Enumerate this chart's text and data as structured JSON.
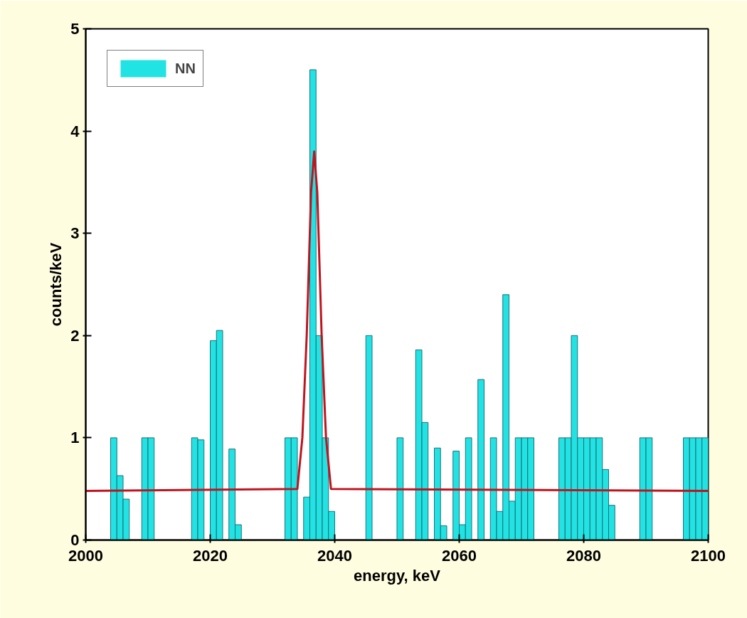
{
  "chart_data": {
    "type": "histogram",
    "xlabel": "energy, keV",
    "ylabel": "counts/keV",
    "bins": [
      2000,
      2001,
      2002,
      2003,
      2004,
      2005,
      2006,
      2007,
      2008,
      2009,
      2010,
      2011,
      2012,
      2013,
      2014,
      2015,
      2016,
      2017,
      2018,
      2019,
      2020,
      2021,
      2022,
      2023,
      2024,
      2025,
      2026,
      2027,
      2028,
      2029,
      2030,
      2031,
      2032,
      2033,
      2034,
      2035,
      2036,
      2037,
      2038,
      2039,
      2040,
      2041,
      2042,
      2043,
      2044,
      2045,
      2046,
      2047,
      2048,
      2049,
      2050,
      2051,
      2052,
      2053,
      2054,
      2055,
      2056,
      2057,
      2058,
      2059,
      2060,
      2061,
      2062,
      2063,
      2064,
      2065,
      2066,
      2067,
      2068,
      2069,
      2070,
      2071,
      2072,
      2073,
      2074,
      2075,
      2076,
      2077,
      2078,
      2079,
      2080,
      2081,
      2082,
      2083,
      2084,
      2085,
      2086,
      2087,
      2088,
      2089,
      2090,
      2091,
      2092,
      2093,
      2094,
      2095,
      2096,
      2097,
      2098,
      2099,
      2100
    ],
    "series": [
      {
        "name": "NN",
        "color": "#22e3e3",
        "values": [
          0,
          0,
          0,
          0,
          1,
          0.63,
          0.4,
          0,
          0,
          1,
          1,
          0,
          0,
          0,
          0,
          0,
          0,
          1,
          0.98,
          0,
          1.95,
          2.05,
          0,
          0.89,
          0.15,
          0,
          0,
          0,
          0,
          0,
          0,
          0,
          1,
          1,
          0,
          0.42,
          4.6,
          2.0,
          1.0,
          0.28,
          0,
          0,
          0,
          0,
          0,
          2.0,
          0,
          0,
          0,
          0,
          1,
          0,
          0,
          1.86,
          1.15,
          0,
          0.9,
          0.14,
          0,
          0.87,
          0.15,
          1,
          0,
          1.57,
          0,
          1,
          0.28,
          2.4,
          0.38,
          1,
          1,
          1,
          0,
          0,
          0,
          0,
          1,
          1,
          2.0,
          1,
          1,
          1,
          1,
          0.69,
          0.34,
          0,
          0,
          0,
          0,
          1,
          1,
          0,
          0,
          0,
          0,
          0,
          1,
          1,
          1,
          1
        ]
      },
      {
        "type": "line",
        "color": "#c0141e",
        "x": [
          2000,
          2034,
          2034.8,
          2035.5,
          2036.2,
          2036.7,
          2037.2,
          2037.9,
          2038.6,
          2039.4,
          2100
        ],
        "values": [
          0.48,
          0.5,
          1.0,
          2.0,
          3.4,
          3.8,
          3.4,
          2.0,
          1.0,
          0.5,
          0.48
        ]
      }
    ],
    "xlim": [
      2000,
      2100
    ],
    "ylim": [
      0,
      5
    ],
    "xticks": [
      2000,
      2020,
      2040,
      2060,
      2080,
      2100
    ],
    "yticks": [
      0,
      1,
      2,
      3,
      4,
      5
    ],
    "grid": false,
    "legend": "top left"
  }
}
